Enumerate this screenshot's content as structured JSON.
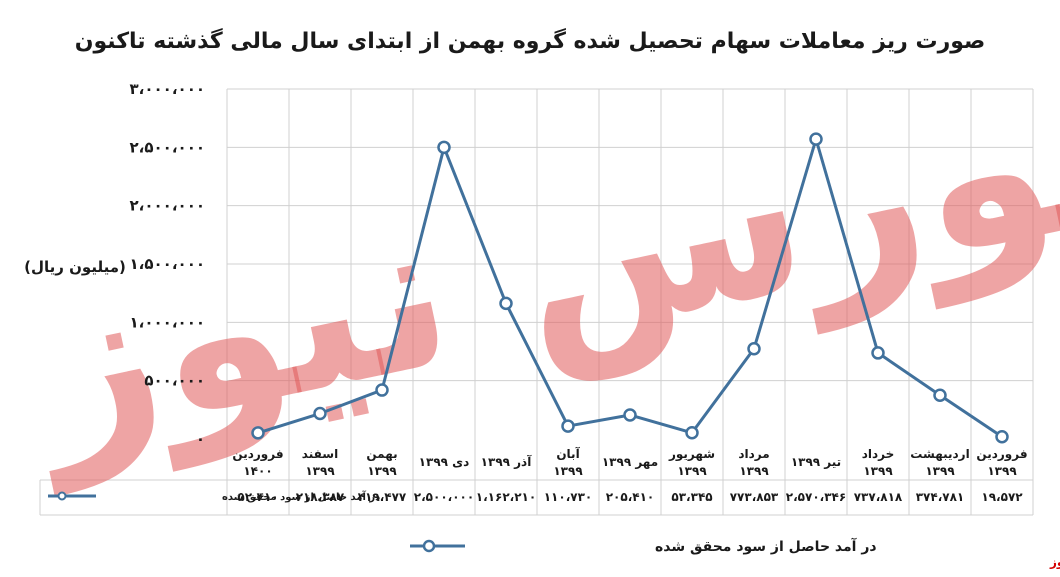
{
  "chart_data": {
    "type": "line",
    "title": "صورت ریز معاملات سهام تحصیل شده گروه بهمن از ابتدای سال مالی گذشته تاکنون",
    "ylabel": "(میلیون ریال)",
    "ylim": [
      0,
      3000000
    ],
    "yticks": [
      "۰",
      "۵۰۰،۰۰۰",
      "۱،۰۰۰،۰۰۰",
      "۱،۵۰۰،۰۰۰",
      "۲،۰۰۰،۰۰۰",
      "۲،۵۰۰،۰۰۰",
      "۳،۰۰۰،۰۰۰"
    ],
    "ytick_values": [
      0,
      500000,
      1000000,
      1500000,
      2000000,
      2500000,
      3000000
    ],
    "categories": [
      [
        "فروردین",
        "۱۳۹۹"
      ],
      [
        "اردیبهشت",
        "۱۳۹۹"
      ],
      [
        "خرداد",
        "۱۳۹۹"
      ],
      [
        "تیر ۱۳۹۹"
      ],
      [
        "مرداد",
        "۱۳۹۹"
      ],
      [
        "شهریور",
        "۱۳۹۹"
      ],
      [
        "مهر ۱۳۹۹"
      ],
      [
        "آبان",
        "۱۳۹۹"
      ],
      [
        "آذر ۱۳۹۹"
      ],
      [
        "دی ۱۳۹۹"
      ],
      [
        "بهمن",
        "۱۳۹۹"
      ],
      [
        "اسفند",
        "۱۳۹۹"
      ],
      [
        "فروردین",
        "۱۴۰۰"
      ]
    ],
    "series": [
      {
        "name": "در آمد حاصل از سود محقق شده",
        "values": [
          19572,
          374781,
          737818,
          2570346,
          773853,
          53345,
          205410,
          110730,
          1162210,
          2500000,
          419477,
          218387,
          52410
        ],
        "labels": [
          "۱۹،۵۷۲",
          "۳۷۴،۷۸۱",
          "۷۳۷،۸۱۸",
          "۲،۵۷۰،۳۴۶",
          "۷۷۳،۸۵۳",
          "۵۳،۳۴۵",
          "۲۰۵،۴۱۰",
          "۱۱۰،۷۳۰",
          "۱،۱۶۲،۲۱۰",
          "۲،۵۰۰،۰۰۰",
          "۴۱۹،۴۷۷",
          "۲۱۸،۳۸۷",
          "۵۲،۴۱۰"
        ]
      }
    ],
    "table_row_label": "در آمد حاصل از سود محقق شده",
    "legend_label": "در آمد حاصل از سود محقق شده",
    "legend_position": "bottom",
    "grid": true,
    "line_color": "#41719c",
    "marker_fill": "#ffffff"
  },
  "watermark": {
    "text": "بورس نیوز",
    "color": "#e05a5a"
  },
  "source_label": "بورس نیوز"
}
